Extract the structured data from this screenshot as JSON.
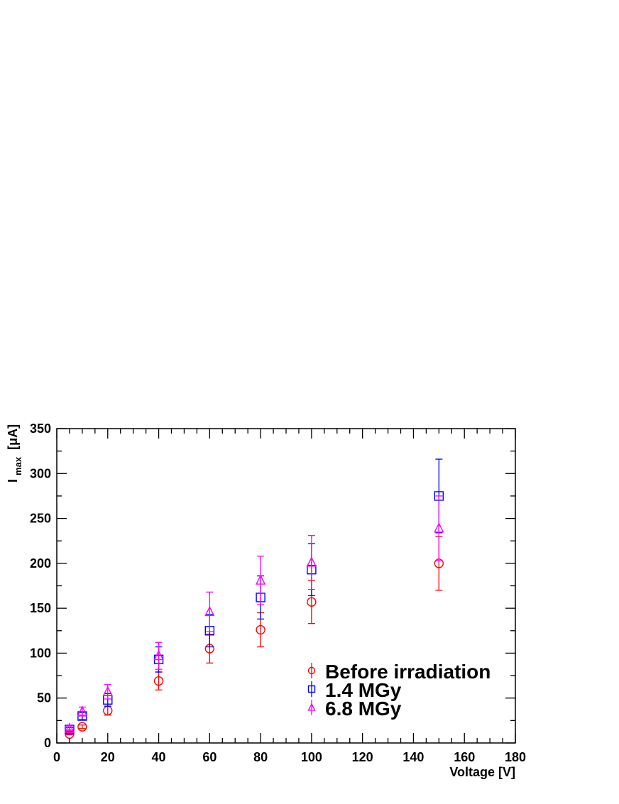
{
  "chart_data": {
    "type": "scatter",
    "title": "",
    "xlabel": "Voltage [V]",
    "ylabel_main": "I",
    "ylabel_sub": "max",
    "ylabel_unit": "[μA]",
    "xlim": [
      0,
      180
    ],
    "ylim": [
      0,
      350
    ],
    "xticks": [
      0,
      20,
      40,
      60,
      80,
      100,
      120,
      140,
      160,
      180
    ],
    "yticks": [
      0,
      50,
      100,
      150,
      200,
      250,
      300,
      350
    ],
    "xtick_labels": [
      "0",
      "20",
      "40",
      "60",
      "80",
      "100",
      "120",
      "140",
      "160",
      "180"
    ],
    "ytick_labels": [
      "0",
      "50",
      "100",
      "150",
      "200",
      "250",
      "300",
      "350"
    ],
    "grid": false,
    "legend_position": "bottom-right",
    "series": [
      {
        "name": "Before irradiation",
        "marker": "circle",
        "color": "#ff0000",
        "points": [
          {
            "x": 5,
            "y": 10,
            "err": 1
          },
          {
            "x": 10,
            "y": 18,
            "err": 2
          },
          {
            "x": 20,
            "y": 36,
            "err": 5
          },
          {
            "x": 40,
            "y": 69,
            "err": 10
          },
          {
            "x": 60,
            "y": 105,
            "err": 16
          },
          {
            "x": 80,
            "y": 126,
            "err": 19
          },
          {
            "x": 100,
            "y": 157,
            "err": 24
          },
          {
            "x": 150,
            "y": 200,
            "err": 30
          }
        ]
      },
      {
        "name": "1.4 MGy",
        "marker": "square",
        "color": "#0000ff",
        "points": [
          {
            "x": 5,
            "y": 15,
            "err": 2
          },
          {
            "x": 10,
            "y": 30,
            "err": 4
          },
          {
            "x": 20,
            "y": 48,
            "err": 7
          },
          {
            "x": 40,
            "y": 93,
            "err": 14
          },
          {
            "x": 60,
            "y": 125,
            "err": 18
          },
          {
            "x": 80,
            "y": 162,
            "err": 24
          },
          {
            "x": 100,
            "y": 193,
            "err": 29
          },
          {
            "x": 150,
            "y": 275,
            "err": 41
          }
        ]
      },
      {
        "name": "6.8 MGy",
        "marker": "triangle",
        "color": "#ff00ff",
        "points": [
          {
            "x": 5,
            "y": 16,
            "err": 2
          },
          {
            "x": 10,
            "y": 35,
            "err": 5
          },
          {
            "x": 20,
            "y": 57,
            "err": 8
          },
          {
            "x": 40,
            "y": 97,
            "err": 15
          },
          {
            "x": 60,
            "y": 146,
            "err": 22
          },
          {
            "x": 80,
            "y": 181,
            "err": 27
          },
          {
            "x": 100,
            "y": 201,
            "err": 30
          },
          {
            "x": 150,
            "y": 239,
            "err": 36
          }
        ]
      }
    ]
  }
}
